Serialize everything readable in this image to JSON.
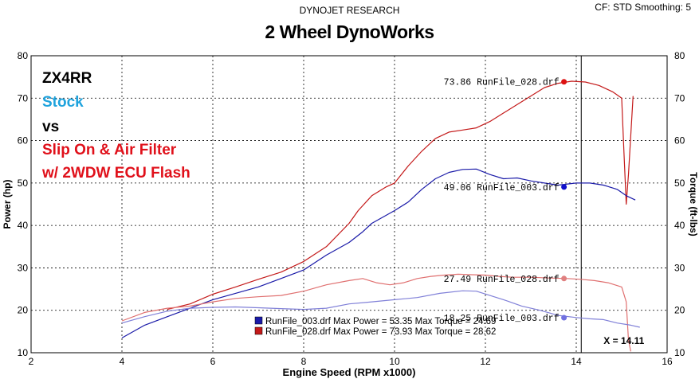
{
  "header": {
    "research": "DYNOJET RESEARCH",
    "cf_info": "CF: STD  Smoothing: 5",
    "title": "2 Wheel DynoWorks"
  },
  "annotations": [
    {
      "text": "ZX4RR",
      "color": "#000000"
    },
    {
      "text": "Stock",
      "color": "#1fa3dd"
    },
    {
      "text": "vs",
      "color": "#000000"
    },
    {
      "text": "Slip On & Air Filter",
      "color": "#e0101a"
    },
    {
      "text": "w/ 2WDW ECU Flash",
      "color": "#e0101a"
    }
  ],
  "chart_data": {
    "type": "line",
    "title": "2 Wheel DynoWorks",
    "xlabel": "Engine Speed (RPM x1000)",
    "ylabel_left": "Power (hp)",
    "ylabel_right": "Torque (ft-lbs)",
    "xlim": [
      2,
      16
    ],
    "ylim": [
      10,
      80
    ],
    "x_ticks": [
      "2",
      "4",
      "6",
      "8",
      "10",
      "12",
      "14",
      "16"
    ],
    "y_ticks": [
      "10",
      "20",
      "30",
      "40",
      "50",
      "60",
      "70",
      "80"
    ],
    "grid": true,
    "cursor_x": 14.11,
    "cursor_label": "X = 14.11",
    "series": [
      {
        "name": "RunFile_028.drf",
        "measure": "power",
        "color": "#c41a1a",
        "points": [
          [
            5.0,
            20.2
          ],
          [
            5.5,
            21.5
          ],
          [
            6.0,
            23.8
          ],
          [
            6.5,
            25.5
          ],
          [
            7.0,
            27.3
          ],
          [
            7.5,
            29.0
          ],
          [
            8.0,
            31.5
          ],
          [
            8.5,
            35.0
          ],
          [
            9.0,
            40.5
          ],
          [
            9.2,
            43.5
          ],
          [
            9.5,
            47.0
          ],
          [
            9.8,
            49.0
          ],
          [
            10.0,
            50.0
          ],
          [
            10.3,
            54.0
          ],
          [
            10.6,
            57.5
          ],
          [
            10.9,
            60.5
          ],
          [
            11.2,
            62.0
          ],
          [
            11.5,
            62.5
          ],
          [
            11.8,
            63.0
          ],
          [
            12.1,
            64.5
          ],
          [
            12.4,
            66.5
          ],
          [
            12.7,
            68.5
          ],
          [
            13.0,
            70.5
          ],
          [
            13.3,
            72.5
          ],
          [
            13.6,
            73.5
          ],
          [
            13.9,
            74.0
          ],
          [
            14.2,
            73.8
          ],
          [
            14.5,
            73.0
          ],
          [
            14.8,
            71.5
          ],
          [
            15.0,
            70.0
          ],
          [
            15.05,
            57.0
          ],
          [
            15.1,
            45.0
          ],
          [
            15.15,
            52.0
          ],
          [
            15.25,
            70.5
          ]
        ]
      },
      {
        "name": "RunFile_003.drf",
        "measure": "power",
        "color": "#1a1aa8",
        "points": [
          [
            4.0,
            13.5
          ],
          [
            4.5,
            16.5
          ],
          [
            5.0,
            18.5
          ],
          [
            5.5,
            20.5
          ],
          [
            6.0,
            22.5
          ],
          [
            6.5,
            24.0
          ],
          [
            7.0,
            25.5
          ],
          [
            7.5,
            27.5
          ],
          [
            8.0,
            29.5
          ],
          [
            8.5,
            33.0
          ],
          [
            9.0,
            36.0
          ],
          [
            9.3,
            38.5
          ],
          [
            9.5,
            40.5
          ],
          [
            10.0,
            43.5
          ],
          [
            10.3,
            45.5
          ],
          [
            10.6,
            48.5
          ],
          [
            10.9,
            51.0
          ],
          [
            11.2,
            52.5
          ],
          [
            11.5,
            53.2
          ],
          [
            11.8,
            53.3
          ],
          [
            12.1,
            52.0
          ],
          [
            12.4,
            51.0
          ],
          [
            12.7,
            51.2
          ],
          [
            13.0,
            50.5
          ],
          [
            13.3,
            50.0
          ],
          [
            13.6,
            49.5
          ],
          [
            14.0,
            50.0
          ],
          [
            14.3,
            50.0
          ],
          [
            14.6,
            49.5
          ],
          [
            14.9,
            48.5
          ],
          [
            15.1,
            47.0
          ],
          [
            15.3,
            46.0
          ]
        ]
      },
      {
        "name": "RunFile_028.drf",
        "measure": "torque",
        "color": "#e07070",
        "points": [
          [
            4.0,
            17.5
          ],
          [
            4.5,
            19.5
          ],
          [
            5.0,
            20.5
          ],
          [
            5.5,
            21.0
          ],
          [
            6.0,
            22.0
          ],
          [
            6.5,
            22.8
          ],
          [
            7.0,
            23.2
          ],
          [
            7.5,
            23.5
          ],
          [
            8.0,
            24.5
          ],
          [
            8.5,
            26.0
          ],
          [
            9.0,
            27.0
          ],
          [
            9.3,
            27.5
          ],
          [
            9.6,
            26.5
          ],
          [
            9.9,
            26.0
          ],
          [
            10.2,
            26.5
          ],
          [
            10.5,
            27.5
          ],
          [
            10.8,
            28.0
          ],
          [
            11.1,
            28.3
          ],
          [
            11.4,
            28.5
          ],
          [
            11.7,
            28.4
          ],
          [
            12.0,
            28.3
          ],
          [
            12.3,
            28.0
          ],
          [
            12.6,
            27.8
          ],
          [
            13.0,
            27.8
          ],
          [
            13.4,
            27.6
          ],
          [
            13.8,
            27.5
          ],
          [
            14.1,
            27.3
          ],
          [
            14.4,
            27.0
          ],
          [
            14.7,
            26.5
          ],
          [
            15.0,
            25.5
          ],
          [
            15.1,
            22.0
          ],
          [
            15.15,
            13.0
          ],
          [
            15.2,
            10.3
          ]
        ]
      },
      {
        "name": "RunFile_003.drf",
        "measure": "torque",
        "color": "#8080d8",
        "points": [
          [
            4.0,
            17.0
          ],
          [
            4.5,
            18.5
          ],
          [
            5.0,
            19.8
          ],
          [
            5.5,
            20.5
          ],
          [
            6.0,
            20.7
          ],
          [
            6.5,
            20.8
          ],
          [
            7.0,
            20.6
          ],
          [
            7.5,
            20.4
          ],
          [
            8.0,
            20.2
          ],
          [
            8.5,
            20.5
          ],
          [
            9.0,
            21.5
          ],
          [
            9.5,
            22.0
          ],
          [
            10.0,
            22.5
          ],
          [
            10.5,
            23.0
          ],
          [
            11.0,
            24.0
          ],
          [
            11.5,
            24.6
          ],
          [
            11.8,
            24.5
          ],
          [
            12.1,
            23.5
          ],
          [
            12.4,
            22.5
          ],
          [
            12.8,
            21.0
          ],
          [
            13.2,
            20.0
          ],
          [
            13.6,
            18.8
          ],
          [
            14.0,
            18.3
          ],
          [
            14.3,
            18.0
          ],
          [
            14.6,
            17.8
          ],
          [
            14.9,
            17.0
          ],
          [
            15.2,
            16.5
          ],
          [
            15.4,
            16.0
          ]
        ]
      }
    ],
    "point_labels": [
      {
        "text": "73.86 RunFile_028.drf",
        "x": 13.73,
        "y": 73.86,
        "color": "#dd1111"
      },
      {
        "text": "49.06 RunFile_003.drf",
        "x": 13.73,
        "y": 49.06,
        "color": "#1010cc"
      },
      {
        "text": "27.49 RunFile_028.drf",
        "x": 13.73,
        "y": 27.49,
        "color": "#e08080"
      },
      {
        "text": "18.25 RunFile_003.drf",
        "x": 13.73,
        "y": 18.25,
        "color": "#7070e0"
      }
    ],
    "legend": [
      {
        "text": "RunFile_003.drf Max Power = 53.35     Max Torque = 24.69",
        "color": "#1a1aa8"
      },
      {
        "text": "RunFile_028.drf Max Power = 73.93     Max Torque = 28.62",
        "color": "#c41a1a"
      }
    ]
  }
}
